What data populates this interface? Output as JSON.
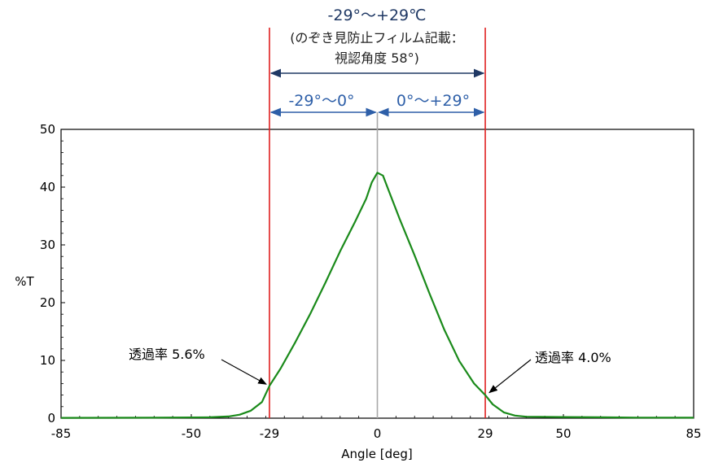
{
  "chart_data": {
    "type": "line",
    "title_lines": [
      "-29°～+29℃",
      "(のぞき見防止フィルム記載：",
      "視認角度 58°)"
    ],
    "xlabel": "Angle [deg]",
    "ylabel": "%T",
    "xlim": [
      -85,
      85
    ],
    "ylim": [
      0,
      50
    ],
    "grid": false,
    "x_tick_labels": [
      {
        "value": -85,
        "label": "-85"
      },
      {
        "value": -50,
        "label": "-50"
      },
      {
        "value": -29,
        "label": "-29"
      },
      {
        "value": 0,
        "label": "0"
      },
      {
        "value": 29,
        "label": "29"
      },
      {
        "value": 50,
        "label": "50"
      },
      {
        "value": 85,
        "label": "85"
      }
    ],
    "y_tick_labels": [
      {
        "value": 0,
        "label": "0"
      },
      {
        "value": 10,
        "label": "10"
      },
      {
        "value": 20,
        "label": "20"
      },
      {
        "value": 30,
        "label": "30"
      },
      {
        "value": 40,
        "label": "40"
      },
      {
        "value": 50,
        "label": "50"
      }
    ],
    "series": [
      {
        "color": "#1a8a1a",
        "points": [
          [
            -85,
            0.05
          ],
          [
            -60,
            0.08
          ],
          [
            -45,
            0.15
          ],
          [
            -40,
            0.3
          ],
          [
            -37,
            0.6
          ],
          [
            -34,
            1.3
          ],
          [
            -31,
            2.8
          ],
          [
            -29,
            5.6
          ],
          [
            -26,
            8.6
          ],
          [
            -22,
            13.2
          ],
          [
            -18,
            18.1
          ],
          [
            -14,
            23.4
          ],
          [
            -10,
            28.9
          ],
          [
            -6,
            34.0
          ],
          [
            -3,
            38.0
          ],
          [
            -1.5,
            40.8
          ],
          [
            0,
            42.5
          ],
          [
            1.5,
            42.0
          ],
          [
            3,
            39.5
          ],
          [
            6,
            34.5
          ],
          [
            10,
            28.2
          ],
          [
            14,
            21.6
          ],
          [
            18,
            15.3
          ],
          [
            22,
            9.9
          ],
          [
            26,
            6.0
          ],
          [
            29,
            4.0
          ],
          [
            31,
            2.4
          ],
          [
            34,
            1.0
          ],
          [
            37,
            0.45
          ],
          [
            40,
            0.25
          ],
          [
            50,
            0.2
          ],
          [
            60,
            0.15
          ],
          [
            70,
            0.1
          ],
          [
            85,
            0.08
          ]
        ]
      }
    ],
    "reference_lines": [
      {
        "x": -29,
        "color": "#e02020"
      },
      {
        "x": 29,
        "color": "#e02020"
      },
      {
        "x": 0,
        "color": "#a8a8a8"
      }
    ],
    "range_annotations": [
      {
        "from": -29,
        "to": 29,
        "color": "#1f3864"
      },
      {
        "from": -29,
        "to": 0,
        "label": "-29°～0°",
        "color": "#2e5fa8"
      },
      {
        "from": 0,
        "to": 29,
        "label": "0°～+29°",
        "color": "#2e5fa8"
      }
    ],
    "point_annotations": [
      {
        "x": -29,
        "y": 5.6,
        "label": "透過率 5.6%"
      },
      {
        "x": 29,
        "y": 4.0,
        "label": "透過率 4.0%"
      }
    ]
  }
}
